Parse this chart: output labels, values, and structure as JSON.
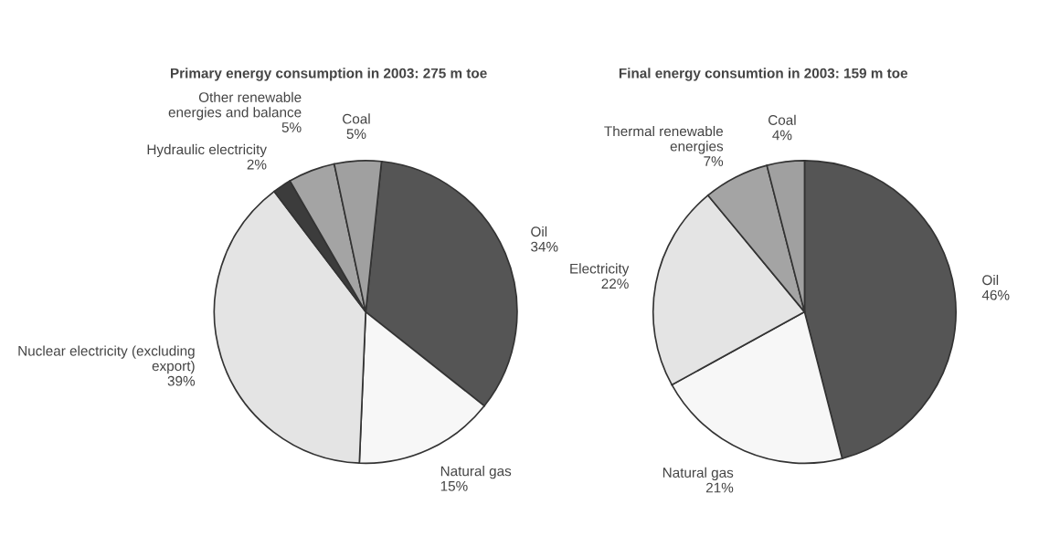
{
  "chart_data": [
    {
      "type": "pie",
      "title": "Primary energy consumption in 2003: 275 m toe",
      "categories": [
        "Oil",
        "Natural gas",
        "Nuclear electricity (excluding\nexport)",
        "Hydraulic electricity",
        "Other renewable\nenergies and balance",
        "Coal"
      ],
      "values": [
        34,
        15,
        39,
        2,
        5,
        5
      ],
      "value_labels": [
        "34%",
        "15%",
        "39%",
        "2%",
        "5%",
        "5%"
      ],
      "colors": [
        "#555555",
        "#f7f7f7",
        "#e4e4e4",
        "#3c3c3c",
        "#a4a4a4",
        "#a0a0a0"
      ]
    },
    {
      "type": "pie",
      "title": "Final energy consumtion in 2003: 159 m toe",
      "categories": [
        "Oil",
        "Natural gas",
        "Electricity",
        "Thermal renewable\nenergies",
        "Coal"
      ],
      "values": [
        46,
        21,
        22,
        7,
        4
      ],
      "value_labels": [
        "46%",
        "21%",
        "22%",
        "7%",
        "4%"
      ],
      "colors": [
        "#555555",
        "#f7f7f7",
        "#e4e4e4",
        "#a4a4a4",
        "#a0a0a0"
      ]
    }
  ]
}
